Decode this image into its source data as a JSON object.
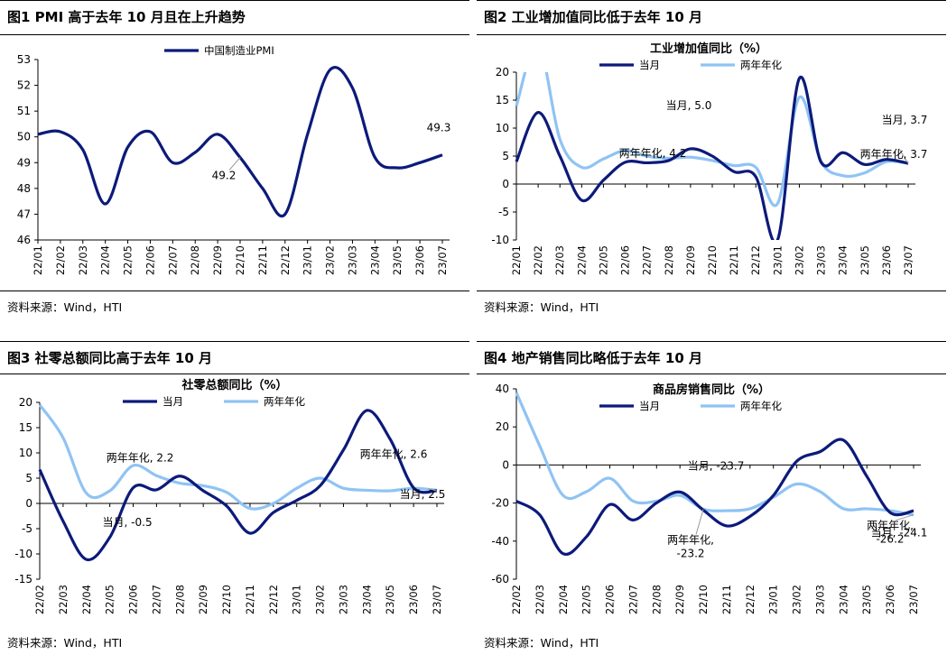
{
  "colors": {
    "dark": "#0c1a7a",
    "light": "#8fc3f4",
    "label": "#000000"
  },
  "panels": [
    {
      "title": "图1  PMI 高于去年 10 月且在上升趋势",
      "source": "资料来源：Wind，HTI",
      "chart_data": {
        "type": "line",
        "title": "",
        "categories": [
          "22/01",
          "22/02",
          "22/03",
          "22/04",
          "22/05",
          "22/06",
          "22/07",
          "22/08",
          "22/09",
          "22/10",
          "22/11",
          "22/12",
          "23/01",
          "23/02",
          "23/03",
          "23/04",
          "23/05",
          "23/06",
          "23/07"
        ],
        "ylim": [
          46,
          53
        ],
        "yticks": [
          46,
          47,
          48,
          49,
          50,
          51,
          52,
          53
        ],
        "legend_position": "top",
        "series": [
          {
            "name": "中国制造业PMI",
            "color": "dark",
            "values": [
              50.1,
              50.2,
              49.5,
              47.4,
              49.6,
              50.2,
              49.0,
              49.4,
              50.1,
              49.2,
              48.0,
              47.0,
              50.1,
              52.6,
              51.9,
              49.2,
              48.8,
              49.0,
              49.3
            ]
          }
        ],
        "annotations": [
          {
            "text": "49.2",
            "x": "22/10",
            "y": 49.2
          },
          {
            "text": "49.3",
            "x": "23/07",
            "y": 49.3
          }
        ]
      }
    },
    {
      "title": "图2  工业增加值同比低于去年 10 月",
      "source": "资料来源：Wind，HTI",
      "chart_data": {
        "type": "line",
        "title": "工业增加值同比（%）",
        "categories": [
          "22/01",
          "22/02",
          "22/03",
          "22/04",
          "22/05",
          "22/06",
          "22/07",
          "22/08",
          "22/09",
          "22/10",
          "22/11",
          "22/12",
          "23/01",
          "23/02",
          "23/03",
          "23/04",
          "23/05",
          "23/06",
          "23/07"
        ],
        "ylim": [
          -10,
          20
        ],
        "yticks": [
          -10,
          -5,
          0,
          5,
          10,
          15,
          20
        ],
        "legend_position": "top",
        "series": [
          {
            "name": "当月",
            "color": "dark",
            "values": [
              4.0,
              12.8,
              5.0,
              -2.9,
              0.7,
              3.9,
              3.8,
              4.2,
              6.3,
              5.0,
              2.2,
              1.3,
              -10.0,
              18.9,
              3.9,
              5.6,
              3.5,
              4.4,
              3.7
            ]
          },
          {
            "name": "两年年化",
            "color": "light",
            "values": [
              14,
              25,
              8.0,
              3.0,
              4.5,
              6.0,
              5.0,
              4.6,
              4.8,
              4.2,
              3.3,
              3.0,
              -3.5,
              15.5,
              4.0,
              1.5,
              2.0,
              4.0,
              3.7
            ]
          }
        ],
        "annotations": [
          {
            "text": "当月, 5.0",
            "x": "22/10",
            "y": 5.0
          },
          {
            "text": "两年年化, 4.2",
            "x": "22/10",
            "y": 4.2
          },
          {
            "text": "当月, 3.7",
            "x": "23/07",
            "y": 3.7
          },
          {
            "text": "两年年化, 3.7",
            "x": "23/07",
            "y": 3.7
          }
        ]
      }
    },
    {
      "title": "图3  社零总额同比高于去年 10 月",
      "source": "资料来源：Wind，HTI",
      "chart_data": {
        "type": "line",
        "title": "社零总额同比（%）",
        "categories": [
          "22/02",
          "22/03",
          "22/04",
          "22/05",
          "22/06",
          "22/07",
          "22/08",
          "22/09",
          "22/10",
          "22/11",
          "22/12",
          "23/01",
          "23/02",
          "23/03",
          "23/04",
          "23/05",
          "23/06",
          "23/07"
        ],
        "ylim": [
          -15,
          20
        ],
        "yticks": [
          -15,
          -10,
          -5,
          0,
          5,
          10,
          15,
          20
        ],
        "legend_position": "top",
        "series": [
          {
            "name": "当月",
            "color": "dark",
            "values": [
              6.7,
              -3.5,
              -11.1,
              -6.7,
              3.1,
              2.7,
              5.4,
              2.5,
              -0.5,
              -5.9,
              -1.8,
              0.6,
              3.5,
              10.6,
              18.4,
              12.7,
              3.1,
              2.5
            ]
          },
          {
            "name": "两年年化",
            "color": "light",
            "values": [
              19.5,
              13.0,
              2.0,
              2.5,
              7.5,
              5.5,
              4.0,
              3.5,
              2.2,
              -1.0,
              0.0,
              3.0,
              5.0,
              3.0,
              2.6,
              2.5,
              3.0,
              2.6
            ]
          }
        ],
        "annotations": [
          {
            "text": "两年年化, 2.2",
            "x": "22/10",
            "y": 2.2
          },
          {
            "text": "当月, -0.5",
            "x": "22/10",
            "y": -0.5
          },
          {
            "text": "两年年化, 2.6",
            "x": "23/07",
            "y": 2.6
          },
          {
            "text": "当月, 2.5",
            "x": "23/07",
            "y": 2.5
          }
        ]
      }
    },
    {
      "title": "图4  地产销售同比略低于去年 10 月",
      "source": "资料来源：Wind，HTI",
      "chart_data": {
        "type": "line",
        "title": "商品房销售同比（%）",
        "categories": [
          "22/02",
          "22/03",
          "22/04",
          "22/05",
          "22/06",
          "22/07",
          "22/08",
          "22/09",
          "22/10",
          "22/11",
          "22/12",
          "23/01",
          "23/02",
          "23/03",
          "23/04",
          "23/05",
          "23/06",
          "23/07"
        ],
        "ylim": [
          -60,
          40
        ],
        "yticks": [
          -60,
          -40,
          -20,
          0,
          20,
          40
        ],
        "legend_position": "top",
        "series": [
          {
            "name": "当月",
            "color": "dark",
            "values": [
              -19.0,
              -26.2,
              -46.6,
              -37.7,
              -20.8,
              -28.9,
              -19.9,
              -14.2,
              -23.7,
              -32.0,
              -27.0,
              -16.0,
              2.0,
              7.0,
              13.0,
              -6.0,
              -25.0,
              -24.1
            ]
          },
          {
            "name": "两年年化",
            "color": "light",
            "values": [
              38.0,
              10.0,
              -16.0,
              -14.0,
              -7.0,
              -19.0,
              -19.0,
              -16.0,
              -23.2,
              -24.0,
              -23.0,
              -17.0,
              -10.0,
              -14.0,
              -23.0,
              -23.0,
              -24.0,
              -26.2
            ]
          }
        ],
        "annotations": [
          {
            "text": "当月, -23.7",
            "x": "22/10",
            "y": -23.7
          },
          {
            "text": "两年年化,",
            "x": "22/10",
            "y": -23.2
          },
          {
            "text": "-23.2",
            "x": "22/10",
            "y": -23.2
          },
          {
            "text": "当月, -24.1",
            "x": "23/07",
            "y": -24.1
          },
          {
            "text": "两年年化,",
            "x": "23/07",
            "y": -26.2
          },
          {
            "text": "-26.2",
            "x": "23/07",
            "y": -26.2
          }
        ]
      }
    }
  ]
}
